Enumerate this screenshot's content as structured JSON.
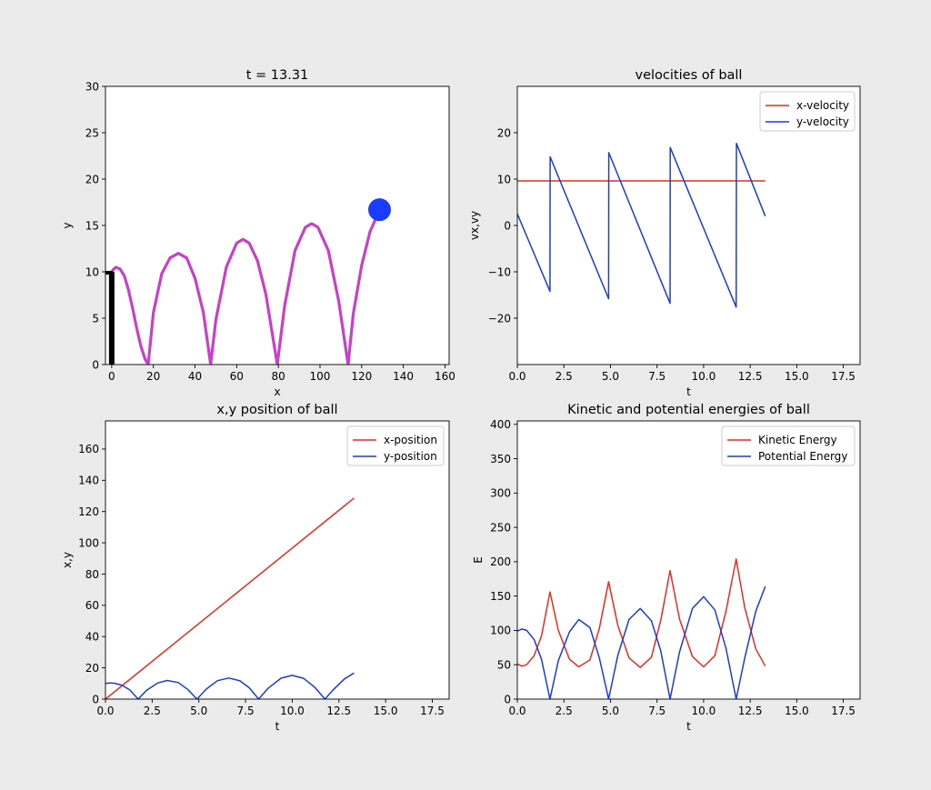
{
  "chart_data": [
    {
      "id": "trajectory",
      "type": "line",
      "title": "t = 13.31",
      "xlabel": "x",
      "ylabel": "y",
      "xlim": [
        -3,
        162
      ],
      "ylim": [
        0,
        30
      ],
      "xticks": [
        0,
        20,
        40,
        60,
        80,
        100,
        120,
        140,
        160
      ],
      "yticks": [
        0,
        5,
        10,
        15,
        20,
        25,
        30
      ],
      "grid": false,
      "platform": {
        "x": 0,
        "height": 10,
        "color": "#000000"
      },
      "ball": {
        "x": 128.6,
        "y": 16.7,
        "color": "#1a3cff"
      },
      "series": [
        {
          "color": "#c840c8",
          "x": [
            0,
            1,
            2,
            4,
            6,
            8,
            10,
            12,
            14,
            16,
            17.5,
            20,
            24,
            28,
            32,
            36,
            40,
            44,
            47.5,
            50,
            55,
            60,
            63,
            66,
            70,
            74,
            79.5,
            83,
            88,
            93,
            96,
            99,
            104,
            109,
            113.5,
            116,
            120,
            124,
            128.6
          ],
          "y": [
            10,
            10.3,
            10.5,
            10.3,
            9.6,
            8.1,
            6.1,
            3.9,
            2.0,
            0.6,
            0,
            5.6,
            9.8,
            11.5,
            12.0,
            11.5,
            9.3,
            5.6,
            0,
            4.8,
            10.5,
            13.1,
            13.5,
            13.1,
            11.2,
            7.6,
            0,
            6.3,
            12.3,
            14.8,
            15.2,
            14.8,
            12.3,
            6.8,
            0,
            5.5,
            10.7,
            14.3,
            16.7
          ]
        }
      ]
    },
    {
      "id": "velocities",
      "type": "line",
      "title": "velocities of ball",
      "xlabel": "t",
      "ylabel": "vx,vy",
      "xlim": [
        0,
        18.4
      ],
      "ylim": [
        -30,
        30
      ],
      "xticks": [
        0.0,
        2.5,
        5.0,
        7.5,
        10.0,
        12.5,
        15.0,
        17.5
      ],
      "xticklabels": [
        "0.0",
        "2.5",
        "5.0",
        "7.5",
        "10.0",
        "12.5",
        "15.0",
        "17.5"
      ],
      "yticks": [
        -20,
        -10,
        0,
        10,
        20
      ],
      "yticklabels": [
        "−20",
        "−10",
        "0",
        "10",
        "20"
      ],
      "grid": false,
      "legend": "top-right",
      "series": [
        {
          "name": "x-velocity",
          "color": "#ee2a1e",
          "x": [
            0,
            13.31
          ],
          "y": [
            9.6,
            9.6
          ]
        },
        {
          "name": "y-velocity",
          "color": "#1a3cdd",
          "x": [
            0,
            1.75,
            1.76,
            4.9,
            4.91,
            8.2,
            8.21,
            11.75,
            11.76,
            13.31
          ],
          "y": [
            2.5,
            -14.2,
            14.8,
            -15.8,
            15.7,
            -16.8,
            16.8,
            -17.6,
            17.7,
            2.0
          ]
        }
      ]
    },
    {
      "id": "positions",
      "type": "line",
      "title": "x,y position of ball",
      "xlabel": "t",
      "ylabel": "x,y",
      "xlim": [
        0,
        18.4
      ],
      "ylim": [
        0,
        178
      ],
      "xticks": [
        0.0,
        2.5,
        5.0,
        7.5,
        10.0,
        12.5,
        15.0,
        17.5
      ],
      "xticklabels": [
        "0.0",
        "2.5",
        "5.0",
        "7.5",
        "10.0",
        "12.5",
        "15.0",
        "17.5"
      ],
      "yticks": [
        0,
        20,
        40,
        60,
        80,
        100,
        120,
        140,
        160
      ],
      "grid": false,
      "legend": "top-right",
      "series": [
        {
          "name": "x-position",
          "color": "#ee2a1e",
          "x": [
            0,
            13.31
          ],
          "y": [
            0,
            128.6
          ]
        },
        {
          "name": "y-position",
          "color": "#1a3cdd",
          "x": [
            0,
            0.25,
            0.5,
            0.9,
            1.3,
            1.75,
            2.2,
            2.8,
            3.3,
            3.9,
            4.4,
            4.9,
            5.4,
            6.0,
            6.6,
            7.2,
            7.7,
            8.2,
            8.7,
            9.4,
            10.0,
            10.6,
            11.2,
            11.75,
            12.2,
            12.8,
            13.31
          ],
          "y": [
            10,
            10.3,
            10.1,
            8.8,
            5.9,
            0,
            5.6,
            10.3,
            11.9,
            10.6,
            6.2,
            0,
            6.4,
            11.8,
            13.5,
            11.7,
            7.2,
            0,
            6.8,
            13.4,
            15.2,
            13.3,
            7.6,
            0,
            6.0,
            13.0,
            16.7
          ]
        }
      ]
    },
    {
      "id": "energies",
      "type": "line",
      "title": "Kinetic and potential energies of ball",
      "xlabel": "t",
      "ylabel": "E",
      "xlim": [
        0,
        18.4
      ],
      "ylim": [
        0,
        405
      ],
      "xticks": [
        0.0,
        2.5,
        5.0,
        7.5,
        10.0,
        12.5,
        15.0,
        17.5
      ],
      "xticklabels": [
        "0.0",
        "2.5",
        "5.0",
        "7.5",
        "10.0",
        "12.5",
        "15.0",
        "17.5"
      ],
      "yticks": [
        0,
        50,
        100,
        150,
        200,
        250,
        300,
        350,
        400
      ],
      "grid": false,
      "legend": "top-right",
      "series": [
        {
          "name": "Kinetic Energy",
          "color": "#ee2a1e",
          "x": [
            0,
            0.25,
            0.5,
            0.9,
            1.3,
            1.75,
            2.2,
            2.8,
            3.3,
            3.9,
            4.4,
            4.9,
            5.4,
            6.0,
            6.6,
            7.2,
            7.7,
            8.2,
            8.7,
            9.4,
            10.0,
            10.6,
            11.2,
            11.75,
            12.2,
            12.8,
            13.31
          ],
          "y": [
            51,
            48,
            50,
            63,
            92,
            156,
            100,
            58,
            47,
            57,
            103,
            171,
            107,
            60,
            46,
            61,
            115,
            187,
            117,
            62,
            47,
            63,
            128,
            204,
            134,
            73,
            48
          ]
        },
        {
          "name": "Potential Energy",
          "color": "#1a3cdd",
          "x": [
            0,
            0.25,
            0.5,
            0.9,
            1.3,
            1.75,
            2.2,
            2.8,
            3.3,
            3.9,
            4.4,
            4.9,
            5.4,
            6.0,
            6.6,
            7.2,
            7.7,
            8.2,
            8.7,
            9.4,
            10.0,
            10.6,
            11.2,
            11.75,
            12.2,
            12.8,
            13.31
          ],
          "y": [
            99,
            102,
            100,
            87,
            58,
            0,
            56,
            98,
            116,
            104,
            60,
            0,
            64,
            116,
            132,
            114,
            70,
            0,
            68,
            132,
            149,
            130,
            74,
            0,
            59,
            128,
            164
          ]
        }
      ]
    }
  ]
}
